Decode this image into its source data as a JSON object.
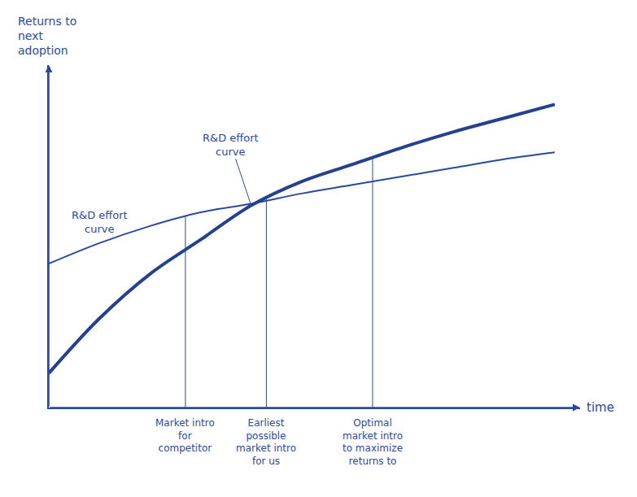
{
  "chart_data": {
    "type": "line",
    "x_label": "time",
    "y_label": "Returns to next adoption",
    "xlim": [
      0,
      10.5
    ],
    "ylim": [
      0,
      10
    ],
    "tick_labels": false,
    "grid": false,
    "x": [
      0,
      1,
      2,
      3,
      4,
      5,
      6,
      7,
      8,
      9,
      10
    ],
    "series": [
      {
        "name": "R&D effort curve",
        "color": "#2b4a9e",
        "line_style": "solid",
        "values": [
          4.2,
          4.8,
          5.3,
          5.7,
          5.95,
          6.25,
          6.5,
          6.75,
          7.0,
          7.25,
          7.45
        ]
      },
      {
        "name": "R&D effort curve",
        "color": "#24418f",
        "line_style": "solid",
        "values": [
          1.0,
          2.6,
          3.9,
          4.9,
          5.9,
          6.6,
          7.1,
          7.6,
          8.05,
          8.45,
          8.85
        ]
      }
    ],
    "markers": [
      {
        "x": 2.7,
        "label": "Market intro for competitor"
      },
      {
        "x": 4.3,
        "label": "Earliest possible market intro for us"
      },
      {
        "x": 6.4,
        "label": "Optimal market intro to maximize returns to"
      }
    ]
  }
}
